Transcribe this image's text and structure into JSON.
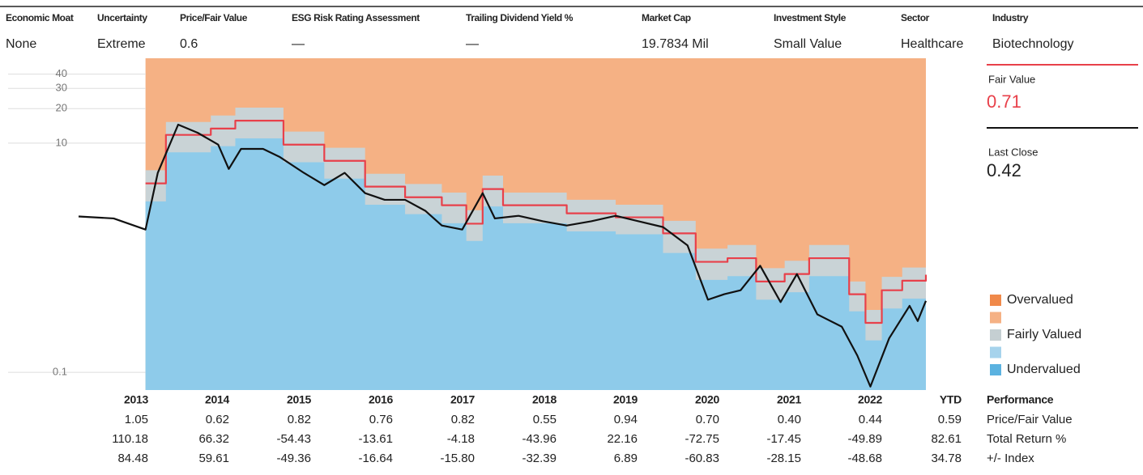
{
  "header": {
    "columns": [
      {
        "label": "Economic Moat",
        "value": "None"
      },
      {
        "label": "Uncertainty",
        "value": "Extreme"
      },
      {
        "label": "Price/Fair Value",
        "value": "0.6"
      },
      {
        "label": "ESG Risk Rating Assessment",
        "value": "—"
      },
      {
        "label": "Trailing Dividend Yield %",
        "value": "—"
      },
      {
        "label": "Market Cap",
        "value": "19.7834 Mil"
      },
      {
        "label": "Investment Style",
        "value": "Small Value"
      },
      {
        "label": "Sector",
        "value": "Healthcare"
      },
      {
        "label": "Industry",
        "value": "Biotechnology"
      }
    ]
  },
  "chart_data": {
    "type": "line",
    "log_scale": true,
    "xlim": [
      2013.15,
      2023.55
    ],
    "ylim": [
      0.07,
      55
    ],
    "yticks": [
      0.1,
      10,
      20,
      30,
      40
    ],
    "overvalued_color": "#f5b184",
    "series": [
      {
        "name": "Fair Value",
        "color": "#e8404a",
        "style": "step",
        "x": [
          2013.97,
          2014.22,
          2014.77,
          2015.07,
          2015.66,
          2016.16,
          2016.66,
          2017.15,
          2017.6,
          2017.9,
          2018.1,
          2018.35,
          2019.13,
          2019.73,
          2020.31,
          2020.71,
          2021.1,
          2021.45,
          2021.8,
          2022.1,
          2022.59,
          2022.79,
          2022.99,
          2023.24,
          2023.53
        ],
        "values": [
          4.45,
          11.8,
          13.4,
          15.7,
          9.7,
          7.0,
          4.17,
          3.37,
          2.87,
          1.98,
          3.97,
          2.87,
          2.44,
          2.25,
          1.63,
          0.92,
          0.99,
          0.62,
          0.72,
          0.99,
          0.48,
          0.27,
          0.52,
          0.63,
          0.71
        ]
      },
      {
        "name": "Last Close",
        "color": "#111111",
        "style": "line",
        "x": [
          2013.15,
          2013.58,
          2013.97,
          2014.12,
          2014.37,
          2014.61,
          2014.86,
          2014.99,
          2015.14,
          2015.41,
          2015.61,
          2015.91,
          2016.16,
          2016.41,
          2016.66,
          2016.9,
          2017.15,
          2017.4,
          2017.6,
          2017.85,
          2018.1,
          2018.25,
          2018.54,
          2018.84,
          2019.13,
          2019.43,
          2019.73,
          2020.01,
          2020.31,
          2020.61,
          2020.86,
          2021.06,
          2021.26,
          2021.5,
          2021.75,
          2021.95,
          2022.2,
          2022.5,
          2022.69,
          2022.85,
          2023.08,
          2023.33,
          2023.43,
          2023.53
        ],
        "values": [
          2.29,
          2.2,
          1.76,
          5.49,
          14.5,
          12.3,
          9.7,
          5.95,
          8.9,
          8.9,
          7.6,
          5.5,
          4.3,
          5.5,
          3.66,
          3.2,
          3.2,
          2.56,
          1.91,
          1.76,
          3.66,
          2.2,
          2.32,
          2.08,
          1.91,
          2.08,
          2.32,
          2.08,
          1.85,
          1.28,
          0.43,
          0.48,
          0.52,
          0.85,
          0.41,
          0.72,
          0.32,
          0.25,
          0.14,
          0.075,
          0.198,
          0.38,
          0.28,
          0.42
        ]
      },
      {
        "color": "#c9d3d6",
        "style": "band",
        "x": [
          2013.97,
          2014.22,
          2014.77,
          2015.07,
          2015.66,
          2016.16,
          2016.66,
          2017.15,
          2017.6,
          2017.9,
          2018.1,
          2018.35,
          2019.13,
          2019.73,
          2020.31,
          2020.71,
          2021.1,
          2021.45,
          2021.8,
          2022.1,
          2022.59,
          2022.79,
          2022.99,
          2023.24,
          2023.53
        ],
        "values": [
          5.8,
          15.3,
          17.4,
          20.4,
          12.6,
          9.1,
          5.4,
          4.4,
          3.7,
          2.6,
          5.2,
          3.7,
          3.2,
          2.9,
          2.1,
          1.2,
          1.29,
          0.81,
          0.94,
          1.29,
          0.62,
          0.35,
          0.68,
          0.82,
          0.92
        ]
      },
      {
        "color": "#8ecbea",
        "style": "band",
        "x": [
          2013.97,
          2014.22,
          2014.77,
          2015.07,
          2015.66,
          2016.16,
          2016.66,
          2017.15,
          2017.6,
          2017.9,
          2018.1,
          2018.35,
          2019.13,
          2019.73,
          2020.31,
          2020.71,
          2021.1,
          2021.45,
          2021.8,
          2022.1,
          2022.59,
          2022.79,
          2022.99,
          2023.24,
          2023.53
        ],
        "values": [
          3.1,
          8.3,
          9.4,
          11.0,
          6.8,
          4.9,
          2.9,
          2.4,
          2.0,
          1.4,
          2.8,
          2.0,
          1.7,
          1.6,
          1.1,
          0.64,
          0.69,
          0.43,
          0.5,
          0.69,
          0.34,
          0.19,
          0.36,
          0.44,
          0.5
        ]
      }
    ],
    "legend": [
      {
        "label": "Overvalued",
        "color": "#f0894a"
      },
      {
        "label": null,
        "color": "#f5b184"
      },
      {
        "label": "Fairly Valued",
        "color": "#c5cfd2"
      },
      {
        "label": null,
        "color": "#a6d3ec"
      },
      {
        "label": "Undervalued",
        "color": "#5bb2e0"
      }
    ]
  },
  "table": {
    "header": [
      "2013",
      "2014",
      "2015",
      "2016",
      "2017",
      "2018",
      "2019",
      "2020",
      "2021",
      "2022",
      "YTD",
      "Performance"
    ],
    "rows": [
      [
        "1.05",
        "0.62",
        "0.82",
        "0.76",
        "0.82",
        "0.55",
        "0.94",
        "0.70",
        "0.40",
        "0.44",
        "0.59",
        "Price/Fair Value"
      ],
      [
        "110.18",
        "66.32",
        "-54.43",
        "-13.61",
        "-4.18",
        "-43.96",
        "22.16",
        "-72.75",
        "-17.45",
        "-49.89",
        "82.61",
        "Total Return %"
      ],
      [
        "84.48",
        "59.61",
        "-49.36",
        "-16.64",
        "-15.80",
        "-32.39",
        "6.89",
        "-60.83",
        "-28.15",
        "-48.68",
        "34.78",
        "+/- Index"
      ]
    ]
  }
}
